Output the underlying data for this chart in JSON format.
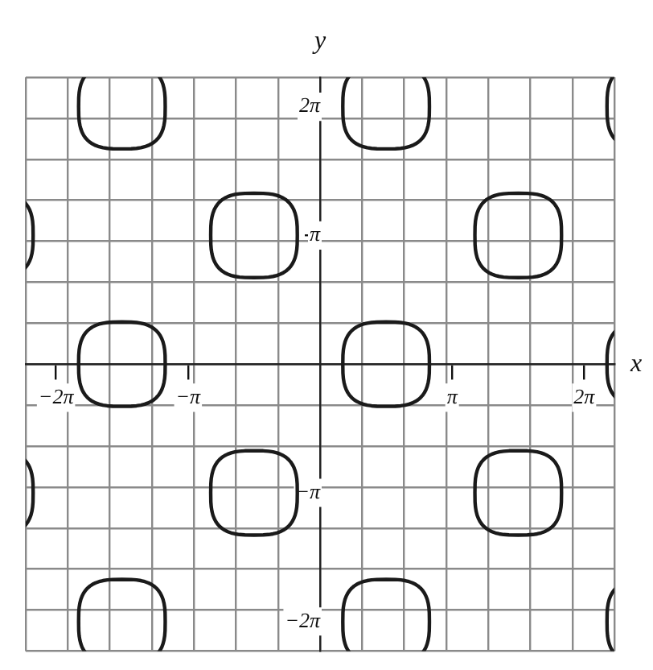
{
  "chart_data": {
    "type": "line",
    "xlabel": "x",
    "ylabel": "y",
    "grid": true,
    "legend": false,
    "xlim": [
      -7,
      7
    ],
    "ylim": [
      -7,
      7
    ],
    "xticks": [
      {
        "value": -7,
        "label": null
      },
      {
        "value": -6.28,
        "label": "−2π"
      },
      {
        "value": -6,
        "label": null
      },
      {
        "value": -5,
        "label": null
      },
      {
        "value": -4,
        "label": null
      },
      {
        "value": -3.14,
        "label": "−π"
      },
      {
        "value": -3,
        "label": null
      },
      {
        "value": -2,
        "label": null
      },
      {
        "value": -1,
        "label": null
      },
      {
        "value": 0,
        "label": null
      },
      {
        "value": 1,
        "label": null
      },
      {
        "value": 2,
        "label": null
      },
      {
        "value": 3,
        "label": null
      },
      {
        "value": 3.14,
        "label": "π"
      },
      {
        "value": 4,
        "label": null
      },
      {
        "value": 5,
        "label": null
      },
      {
        "value": 6,
        "label": null
      },
      {
        "value": 6.28,
        "label": "2π"
      },
      {
        "value": 7,
        "label": null
      }
    ],
    "yticks": [
      {
        "value": -7,
        "label": null
      },
      {
        "value": -6.28,
        "label": "−2π"
      },
      {
        "value": -6,
        "label": null
      },
      {
        "value": -5,
        "label": null
      },
      {
        "value": -4,
        "label": null
      },
      {
        "value": -3.14,
        "label": "−π"
      },
      {
        "value": -3,
        "label": null
      },
      {
        "value": -2,
        "label": null
      },
      {
        "value": -1,
        "label": null
      },
      {
        "value": 0,
        "label": null
      },
      {
        "value": 1,
        "label": null
      },
      {
        "value": 2,
        "label": null
      },
      {
        "value": 3,
        "label": null
      },
      {
        "value": 3.14,
        "label": "π"
      },
      {
        "value": 4,
        "label": null
      },
      {
        "value": 5,
        "label": null
      },
      {
        "value": 6,
        "label": null
      },
      {
        "value": 6.28,
        "label": "2π"
      },
      {
        "value": 7,
        "label": null
      }
    ]
  }
}
